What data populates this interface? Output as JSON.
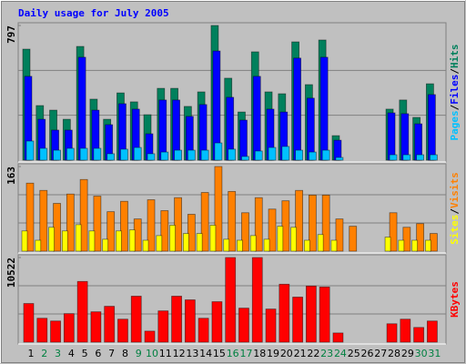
{
  "chart_data": {
    "type": "bar",
    "title": "Daily usage for July 2005",
    "title_color": "#0000ff",
    "grid": true,
    "categories": [
      "1",
      "2",
      "3",
      "4",
      "5",
      "6",
      "7",
      "8",
      "9",
      "10",
      "11",
      "12",
      "13",
      "14",
      "15",
      "16",
      "17",
      "18",
      "19",
      "20",
      "21",
      "22",
      "23",
      "24",
      "25",
      "26",
      "27",
      "28",
      "29",
      "30",
      "31"
    ],
    "category_colors": [
      "#000000",
      "#008040",
      "#008040",
      "#000000",
      "#000000",
      "#000000",
      "#000000",
      "#000000",
      "#008040",
      "#008040",
      "#000000",
      "#000000",
      "#000000",
      "#000000",
      "#000000",
      "#008040",
      "#008040",
      "#000000",
      "#000000",
      "#000000",
      "#000000",
      "#000000",
      "#008040",
      "#008040",
      "#000000",
      "#000000",
      "#000000",
      "#000000",
      "#000000",
      "#008040",
      "#008040"
    ],
    "separator": "/",
    "panels": [
      {
        "ylim": [
          0,
          797
        ],
        "yticks": [
          797
        ],
        "series": [
          {
            "name": "Hits",
            "color": "#00805c",
            "values": [
              657,
              323,
              296,
              242,
              673,
              361,
              242,
              398,
              345,
              269,
              425,
              425,
              318,
              404,
              797,
              485,
              285,
              641,
              404,
              393,
              700,
              447,
              711,
              145,
              0,
              0,
              0,
              302,
              356,
              253,
              452
            ]
          },
          {
            "name": "Files",
            "color": "#0000ff",
            "values": [
              496,
              242,
              178,
              178,
              609,
              296,
              210,
              334,
              302,
              156,
              356,
              356,
              259,
              329,
              646,
              372,
              237,
              496,
              302,
              285,
              604,
              367,
              609,
              118,
              0,
              0,
              0,
              280,
              275,
              215,
              388
            ]
          },
          {
            "name": "Pages",
            "color": "#00c0ff",
            "values": [
              113,
              70,
              59,
              70,
              70,
              70,
              38,
              65,
              75,
              38,
              48,
              59,
              59,
              59,
              102,
              65,
              22,
              54,
              75,
              81,
              59,
              48,
              59,
              16,
              0,
              0,
              0,
              32,
              32,
              32,
              32
            ]
          }
        ]
      },
      {
        "ylim": [
          0,
          163
        ],
        "yticks": [
          163
        ],
        "series": [
          {
            "name": "Visits",
            "color": "#ff8000",
            "values": [
              131,
              117,
              92,
              110,
              138,
              106,
              76,
              96,
              62,
              99,
              78,
              103,
              71,
              113,
              163,
              115,
              74,
              103,
              81,
              97,
              117,
              108,
              108,
              62,
              48,
              0,
              0,
              74,
              46,
              53,
              34
            ]
          },
          {
            "name": "Sites",
            "color": "#ffff00",
            "values": [
              39,
              21,
              46,
              39,
              51,
              39,
              23,
              39,
              41,
              21,
              30,
              50,
              34,
              34,
              50,
              23,
              21,
              30,
              23,
              48,
              46,
              21,
              32,
              21,
              0,
              0,
              0,
              27,
              21,
              21,
              21
            ]
          }
        ]
      },
      {
        "ylim": [
          0,
          10522
        ],
        "yticks": [
          10522
        ],
        "series": [
          {
            "name": "KBytes",
            "color": "#ff0000",
            "values": [
              4803,
              2973,
              2630,
              3545,
              7548,
              3774,
              4460,
              2859,
              5718,
              1372,
              3888,
              5718,
              5261,
              2973,
              5032,
              10522,
              4231,
              10522,
              4117,
              7205,
              5604,
              6976,
              6862,
              1144,
              0,
              0,
              0,
              2287,
              2859,
              1830,
              2630
            ]
          }
        ]
      }
    ]
  }
}
